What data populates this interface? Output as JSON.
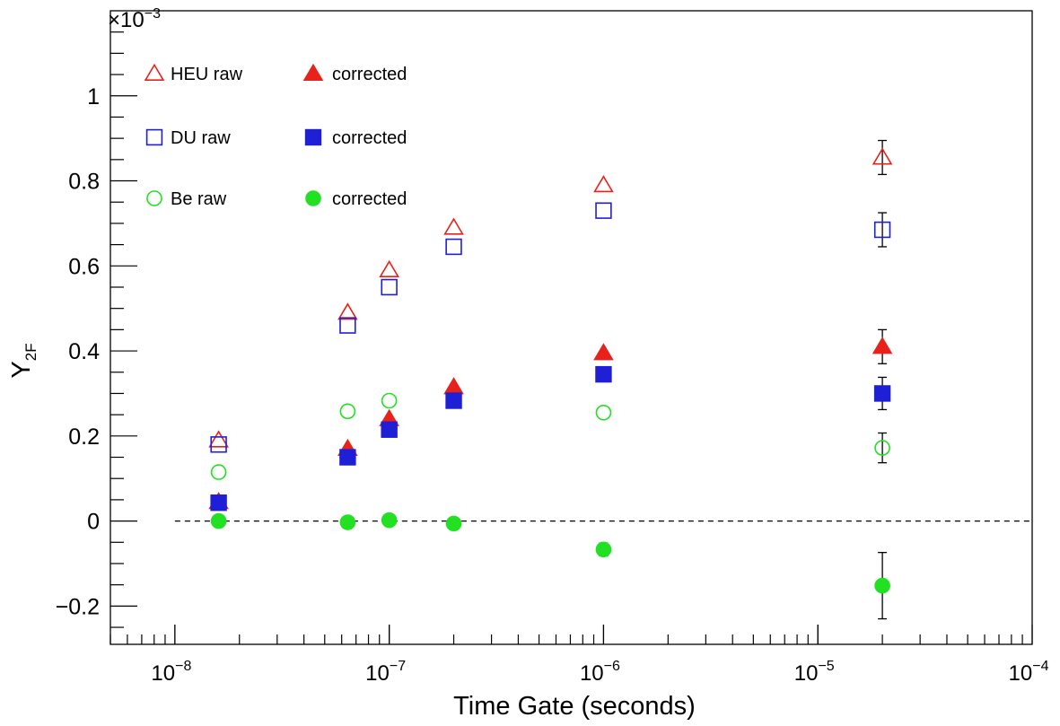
{
  "chart_data": {
    "type": "scatter",
    "x_scale": "log",
    "xlabel": "Time Gate (seconds)",
    "ylabel_main": "Y",
    "ylabel_sub": "2F",
    "y_multiplier_base": "×10",
    "y_multiplier_exp": "−3",
    "xlim": [
      5e-09,
      0.0001
    ],
    "ylim": [
      -0.29,
      1.2
    ],
    "x_ticks": [
      {
        "value": 1e-08,
        "base": "10",
        "exp": "−8"
      },
      {
        "value": 1e-07,
        "base": "10",
        "exp": "−7"
      },
      {
        "value": 1e-06,
        "base": "10",
        "exp": "−6"
      },
      {
        "value": 1e-05,
        "base": "10",
        "exp": "−5"
      },
      {
        "value": 0.0001,
        "base": "10",
        "exp": "−4"
      }
    ],
    "y_ticks": [
      {
        "value": -0.2,
        "label": "−0.2"
      },
      {
        "value": 0,
        "label": "0"
      },
      {
        "value": 0.2,
        "label": "0.2"
      },
      {
        "value": 0.4,
        "label": "0.4"
      },
      {
        "value": 0.6,
        "label": "0.6"
      },
      {
        "value": 0.8,
        "label": "0.8"
      },
      {
        "value": 1.0,
        "label": "1"
      }
    ],
    "reference_line": {
      "y": 0,
      "style": "dashed",
      "x_from": 1e-08,
      "x_to": 0.0001
    },
    "series": [
      {
        "name": "HEU raw",
        "marker": "triangle",
        "filled": false,
        "color": "#e8221b",
        "points": [
          {
            "x": 1.6e-08,
            "y": 0.19
          },
          {
            "x": 6.4e-08,
            "y": 0.49
          },
          {
            "x": 1e-07,
            "y": 0.59
          },
          {
            "x": 2e-07,
            "y": 0.69
          },
          {
            "x": 1e-06,
            "y": 0.79
          },
          {
            "x": 2e-05,
            "y": 0.855,
            "err": 0.04
          }
        ]
      },
      {
        "name": "corrected",
        "marker": "triangle",
        "filled": true,
        "color": "#e8221b",
        "points": [
          {
            "x": 1.6e-08,
            "y": 0.045
          },
          {
            "x": 6.4e-08,
            "y": 0.17
          },
          {
            "x": 1e-07,
            "y": 0.24
          },
          {
            "x": 2e-07,
            "y": 0.315
          },
          {
            "x": 1e-06,
            "y": 0.395
          },
          {
            "x": 2e-05,
            "y": 0.41,
            "err": 0.04
          }
        ]
      },
      {
        "name": "DU raw",
        "marker": "square",
        "filled": false,
        "color": "#1f1fd6",
        "points": [
          {
            "x": 1.6e-08,
            "y": 0.18
          },
          {
            "x": 6.4e-08,
            "y": 0.46
          },
          {
            "x": 1e-07,
            "y": 0.55
          },
          {
            "x": 2e-07,
            "y": 0.645
          },
          {
            "x": 1e-06,
            "y": 0.73
          },
          {
            "x": 2e-05,
            "y": 0.685,
            "err": 0.04
          }
        ]
      },
      {
        "name": "corrected",
        "marker": "square",
        "filled": true,
        "color": "#1f1fd6",
        "points": [
          {
            "x": 1.6e-08,
            "y": 0.043
          },
          {
            "x": 6.4e-08,
            "y": 0.15
          },
          {
            "x": 1e-07,
            "y": 0.215
          },
          {
            "x": 2e-07,
            "y": 0.283
          },
          {
            "x": 1e-06,
            "y": 0.345
          },
          {
            "x": 2e-05,
            "y": 0.3,
            "err": 0.038
          }
        ]
      },
      {
        "name": "Be raw",
        "marker": "circle",
        "filled": false,
        "color": "#22e022",
        "points": [
          {
            "x": 1.6e-08,
            "y": 0.115
          },
          {
            "x": 6.4e-08,
            "y": 0.258
          },
          {
            "x": 1e-07,
            "y": 0.283
          },
          {
            "x": 1e-06,
            "y": 0.255
          },
          {
            "x": 2e-05,
            "y": 0.172,
            "err": 0.035
          }
        ]
      },
      {
        "name": "corrected",
        "marker": "circle",
        "filled": true,
        "color": "#22e022",
        "points": [
          {
            "x": 1.6e-08,
            "y": 0.0
          },
          {
            "x": 6.4e-08,
            "y": -0.003
          },
          {
            "x": 1e-07,
            "y": 0.002
          },
          {
            "x": 2e-07,
            "y": -0.006
          },
          {
            "x": 1e-06,
            "y": -0.067,
            "err": 0.015
          },
          {
            "x": 2e-05,
            "y": -0.152,
            "err": 0.078
          }
        ]
      }
    ],
    "legend": "top-left"
  }
}
